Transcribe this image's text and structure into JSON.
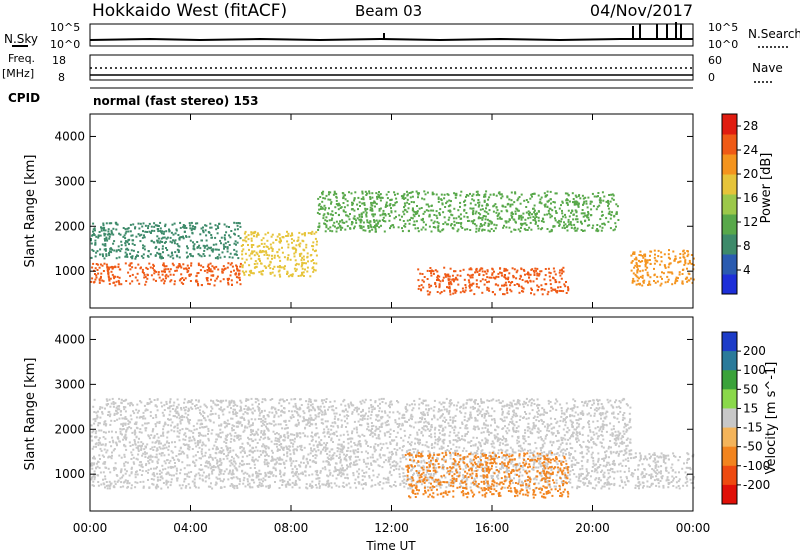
{
  "header": {
    "station": "Hokkaido West (fitACF)",
    "beam": "Beam 03",
    "date": "04/Nov/2017"
  },
  "top_panels": {
    "nsky_label": "N.Sky",
    "nsearch_label": "N.Search",
    "noise_tick_high": "10^5",
    "noise_tick_low": "10^0",
    "freq_label": "Freq.",
    "freq_unit": "[MHz]",
    "freq_tick_high": "18",
    "freq_tick_low": "8",
    "nave_label": "Nave",
    "nave_tick_high": "60",
    "nave_tick_low": "0",
    "cpid_label": "CPID",
    "cpid_text": "normal (fast stereo) 153"
  },
  "chart_data": [
    {
      "type": "heatmap",
      "name": "power",
      "ylabel": "Slant Range [km]",
      "ylim": [
        180,
        4500
      ],
      "yticks": [
        "1000",
        "2000",
        "3000",
        "4000"
      ],
      "xlim": [
        "00:00",
        "24:00"
      ],
      "colorbar": {
        "label": "Power [dB]",
        "ticks": [
          "4",
          "8",
          "12",
          "16",
          "20",
          "24",
          "28"
        ],
        "range": [
          0,
          30
        ],
        "colors": [
          "#1d2fd8",
          "#2a5bb0",
          "#3d8a6a",
          "#58a84a",
          "#9cc84a",
          "#e6c43a",
          "#f4941e",
          "#ef5a16",
          "#e01c10"
        ]
      },
      "regions": [
        {
          "t": [
            0,
            6
          ],
          "range": [
            1300,
            2100
          ],
          "level": 8
        },
        {
          "t": [
            0,
            6
          ],
          "range": [
            700,
            1200
          ],
          "level": 24
        },
        {
          "t": [
            6,
            9
          ],
          "range": [
            900,
            1900
          ],
          "level": 18
        },
        {
          "t": [
            9,
            21
          ],
          "range": [
            1900,
            2800
          ],
          "level": 12
        },
        {
          "t": [
            13,
            19
          ],
          "range": [
            500,
            1100
          ],
          "level": 26
        },
        {
          "t": [
            21.5,
            24
          ],
          "range": [
            700,
            1500
          ],
          "level": 22
        }
      ]
    },
    {
      "type": "heatmap",
      "name": "velocity",
      "ylabel": "Slant Range [km]",
      "xlabel": "Time UT",
      "ylim": [
        180,
        4500
      ],
      "yticks": [
        "1000",
        "2000",
        "3000",
        "4000"
      ],
      "xticks": [
        "00:00",
        "04:00",
        "08:00",
        "12:00",
        "16:00",
        "20:00",
        "00:00"
      ],
      "colorbar": {
        "label": "Velocity [m s^-1]",
        "ticks": [
          "200",
          "100",
          "50",
          "15",
          "-15",
          "-50",
          "-100",
          "-200"
        ],
        "colors": [
          "#1d3cc8",
          "#2a7a9a",
          "#3aa23a",
          "#8ad84a",
          "#c8c8c8",
          "#f4b45a",
          "#f2841e",
          "#ee4a10",
          "#e01008"
        ]
      },
      "regions": [
        {
          "t": [
            0,
            21.5
          ],
          "range": [
            700,
            2700
          ],
          "level": 0
        },
        {
          "t": [
            12.5,
            19
          ],
          "range": [
            500,
            1500
          ],
          "level": -80
        },
        {
          "t": [
            21.5,
            24
          ],
          "range": [
            700,
            1500
          ],
          "level": 0
        }
      ]
    }
  ]
}
